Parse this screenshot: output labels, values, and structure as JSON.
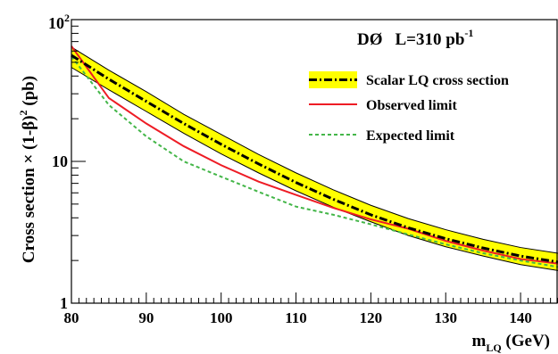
{
  "chart_data": {
    "type": "line",
    "title": "",
    "header": {
      "experiment": "DØ",
      "lumi_label": "L=310 pb",
      "lumi_exp": "-1"
    },
    "xlabel": {
      "main": "m",
      "sub": "LQ",
      "unit": " (GeV)"
    },
    "ylabel": {
      "main": "Cross section × (1-β)",
      "sup": "2",
      "unit": " (pb)"
    },
    "xlim": [
      80,
      145
    ],
    "ylim": [
      1,
      100
    ],
    "yscale": "log",
    "grid": false,
    "legend_position": "top-right",
    "x_ticks": [
      "80",
      "90",
      "100",
      "110",
      "120",
      "130",
      "140"
    ],
    "y_ticks": [
      {
        "value": 1,
        "label": "1"
      },
      {
        "value": 10,
        "label": "10"
      },
      {
        "value": 100,
        "label": "10",
        "exp": "2"
      }
    ],
    "series": [
      {
        "name": "Scalar LQ cross section",
        "kind": "band",
        "color": "#000000",
        "fill": "#ffff00",
        "x": [
          80,
          85,
          90,
          95,
          100,
          105,
          110,
          115,
          120,
          125,
          130,
          135,
          140,
          145
        ],
        "central": [
          56,
          38,
          26.5,
          18.5,
          13.2,
          9.6,
          7.1,
          5.4,
          4.2,
          3.4,
          2.85,
          2.45,
          2.15,
          1.95
        ],
        "upper": [
          64,
          44,
          31,
          21.5,
          15.5,
          11.2,
          8.3,
          6.3,
          4.9,
          3.95,
          3.3,
          2.82,
          2.47,
          2.25
        ],
        "lower": [
          46,
          32,
          22.5,
          15.8,
          11.3,
          8.3,
          6.2,
          4.75,
          3.75,
          3.0,
          2.5,
          2.15,
          1.87,
          1.7
        ]
      },
      {
        "name": "Observed limit",
        "kind": "solid",
        "color": "#ee1c25",
        "x": [
          80,
          85,
          90,
          95,
          100,
          105,
          110,
          115,
          120,
          125,
          130,
          135,
          140,
          145
        ],
        "values": [
          65,
          28,
          18.5,
          12.8,
          9.4,
          7.2,
          5.8,
          4.7,
          3.9,
          3.35,
          2.75,
          2.35,
          2.05,
          1.9
        ]
      },
      {
        "name": "Expected limit",
        "kind": "dashed",
        "color": "#44b649",
        "x": [
          80,
          85,
          90,
          95,
          100,
          105,
          110,
          115,
          120,
          125,
          130,
          135,
          140,
          145
        ],
        "values": [
          55,
          25,
          15,
          10,
          7.8,
          6.1,
          4.8,
          4.2,
          3.6,
          3.05,
          2.6,
          2.25,
          2.0,
          1.8
        ]
      }
    ]
  }
}
